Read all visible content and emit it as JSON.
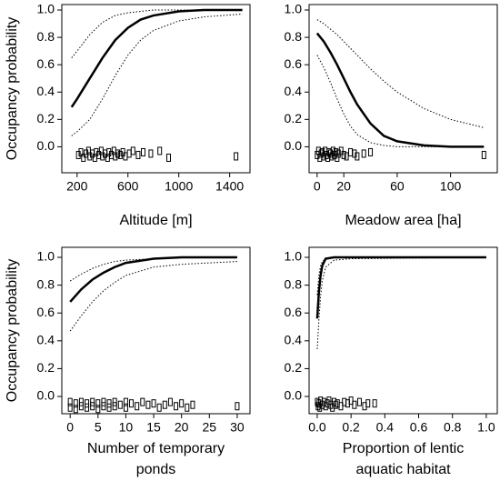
{
  "chart_data": [
    {
      "type": "line",
      "ylabel": "Occupancy probability",
      "xlabel": [
        "Altitude [m]"
      ],
      "xlim": [
        80,
        1560
      ],
      "xticks": [
        200,
        600,
        1000,
        1400
      ],
      "ylim": [
        -0.19,
        1.04
      ],
      "yticks": [
        {
          "value": 0,
          "label": "0.0"
        },
        0.2,
        0.4,
        0.6,
        0.8,
        {
          "value": 1,
          "label": "1.0"
        }
      ],
      "x": [
        157,
        200,
        300,
        400,
        500,
        600,
        700,
        800,
        1000,
        1200,
        1500
      ],
      "series": [
        {
          "color": "#000000",
          "style": "solid",
          "values": [
            0.29,
            0.35,
            0.5,
            0.65,
            0.78,
            0.87,
            0.93,
            0.96,
            0.99,
            1.0,
            1.0
          ]
        },
        {
          "color": "#000000",
          "style": "dotted",
          "values": [
            0.65,
            0.7,
            0.82,
            0.91,
            0.96,
            0.98,
            0.99,
            1.0,
            1.0,
            1.0,
            1.0
          ]
        },
        {
          "color": "#000000",
          "style": "dotted",
          "values": [
            0.08,
            0.11,
            0.2,
            0.35,
            0.52,
            0.67,
            0.78,
            0.85,
            0.92,
            0.95,
            0.97
          ]
        }
      ],
      "points": {
        "x": [
          210,
          230,
          250,
          270,
          290,
          300,
          320,
          340,
          350,
          370,
          390,
          400,
          420,
          440,
          450,
          470,
          490,
          500,
          520,
          540,
          560,
          580,
          610,
          640,
          680,
          720,
          780,
          850,
          920,
          1450
        ],
        "y": [
          -0.06,
          -0.04,
          -0.08,
          -0.05,
          -0.03,
          -0.07,
          -0.05,
          -0.08,
          -0.04,
          -0.06,
          -0.03,
          -0.07,
          -0.05,
          -0.08,
          -0.04,
          -0.06,
          -0.03,
          -0.07,
          -0.05,
          -0.06,
          -0.04,
          -0.07,
          -0.05,
          -0.03,
          -0.06,
          -0.04,
          -0.05,
          -0.03,
          -0.08,
          -0.07
        ]
      }
    },
    {
      "type": "line",
      "xlabel": [
        "Meadow area [ha]"
      ],
      "xlim": [
        -6,
        135
      ],
      "xticks": [
        0,
        20,
        60,
        100
      ],
      "ylim": [
        -0.19,
        1.04
      ],
      "yticks": [
        {
          "value": 0,
          "label": "0.0"
        },
        0.2,
        0.4,
        0.6,
        0.8,
        {
          "value": 1,
          "label": "1.0"
        }
      ],
      "x": [
        0,
        5,
        10,
        15,
        20,
        25,
        30,
        40,
        50,
        60,
        80,
        100,
        125
      ],
      "series": [
        {
          "color": "#000000",
          "style": "solid",
          "values": [
            0.83,
            0.77,
            0.69,
            0.6,
            0.5,
            0.4,
            0.31,
            0.17,
            0.08,
            0.04,
            0.01,
            0.0,
            0.0
          ]
        },
        {
          "color": "#000000",
          "style": "dotted",
          "values": [
            0.93,
            0.9,
            0.86,
            0.82,
            0.77,
            0.72,
            0.67,
            0.57,
            0.48,
            0.4,
            0.28,
            0.2,
            0.14
          ]
        },
        {
          "color": "#000000",
          "style": "dotted",
          "values": [
            0.67,
            0.58,
            0.47,
            0.35,
            0.24,
            0.15,
            0.09,
            0.03,
            0.01,
            0.0,
            0.0,
            0.0,
            0.0
          ]
        }
      ],
      "points": {
        "x": [
          0,
          1,
          2,
          3,
          4,
          5,
          6,
          7,
          8,
          9,
          10,
          11,
          12,
          13,
          14,
          15,
          16,
          18,
          20,
          22,
          25,
          28,
          30,
          35,
          40,
          125
        ],
        "y": [
          -0.06,
          -0.03,
          -0.08,
          -0.05,
          -0.04,
          -0.07,
          -0.03,
          -0.06,
          -0.08,
          -0.04,
          -0.05,
          -0.07,
          -0.03,
          -0.06,
          -0.04,
          -0.08,
          -0.05,
          -0.03,
          -0.06,
          -0.07,
          -0.04,
          -0.05,
          -0.07,
          -0.05,
          -0.04,
          -0.06
        ]
      }
    },
    {
      "type": "line",
      "ylabel": "Occupancy probability",
      "xlabel": [
        "Number of temporary",
        "ponds"
      ],
      "xlim": [
        -1.5,
        32.3
      ],
      "xticks": [
        0,
        5,
        10,
        15,
        20,
        25,
        30
      ],
      "ylim": [
        -0.124,
        1.072
      ],
      "yticks": [
        {
          "value": 0,
          "label": "0.0"
        },
        0.2,
        0.4,
        0.6,
        0.8,
        {
          "value": 1,
          "label": "1.0"
        }
      ],
      "x": [
        0,
        2,
        4,
        6,
        8,
        10,
        15,
        20,
        30
      ],
      "series": [
        {
          "color": "#000000",
          "style": "solid",
          "values": [
            0.68,
            0.77,
            0.84,
            0.89,
            0.93,
            0.96,
            0.99,
            1.0,
            1.0
          ]
        },
        {
          "color": "#000000",
          "style": "dotted",
          "values": [
            0.83,
            0.88,
            0.92,
            0.95,
            0.97,
            0.98,
            0.99,
            1.0,
            1.0
          ]
        },
        {
          "color": "#000000",
          "style": "dotted",
          "values": [
            0.47,
            0.58,
            0.68,
            0.76,
            0.82,
            0.87,
            0.93,
            0.95,
            0.97
          ]
        }
      ],
      "points": {
        "x": [
          0,
          0,
          1,
          1,
          2,
          2,
          3,
          3,
          4,
          4,
          5,
          5,
          6,
          6,
          7,
          7,
          8,
          8,
          9,
          10,
          10,
          11,
          12,
          13,
          14,
          15,
          16,
          17,
          18,
          19,
          20,
          21,
          22,
          30
        ],
        "y": [
          -0.04,
          -0.08,
          -0.05,
          -0.09,
          -0.04,
          -0.07,
          -0.05,
          -0.08,
          -0.04,
          -0.07,
          -0.05,
          -0.09,
          -0.04,
          -0.07,
          -0.05,
          -0.08,
          -0.04,
          -0.07,
          -0.06,
          -0.04,
          -0.08,
          -0.05,
          -0.07,
          -0.04,
          -0.06,
          -0.05,
          -0.08,
          -0.06,
          -0.04,
          -0.07,
          -0.05,
          -0.08,
          -0.06,
          -0.07
        ]
      }
    },
    {
      "type": "line",
      "xlabel": [
        "Proportion of lentic",
        "aquatic habitat"
      ],
      "xlim": [
        -0.048,
        1.065
      ],
      "xticks": [
        {
          "value": 0,
          "label": "0.0"
        },
        0.2,
        0.4,
        0.6,
        0.8,
        {
          "value": 1,
          "label": "1.0"
        }
      ],
      "ylim": [
        -0.124,
        1.072
      ],
      "yticks": [
        {
          "value": 0,
          "label": "0.0"
        },
        0.2,
        0.4,
        0.6,
        0.8,
        {
          "value": 1,
          "label": "1.0"
        }
      ],
      "x": [
        0,
        0.01,
        0.02,
        0.03,
        0.05,
        0.1,
        0.2,
        1.0
      ],
      "series": [
        {
          "color": "#000000",
          "style": "solid",
          "values": [
            0.56,
            0.75,
            0.87,
            0.94,
            0.99,
            1.0,
            1.0,
            1.0
          ]
        },
        {
          "color": "#000000",
          "style": "dotted",
          "values": [
            0.73,
            0.87,
            0.94,
            0.97,
            0.99,
            1.0,
            1.0,
            1.0
          ]
        },
        {
          "color": "#000000",
          "style": "dotted",
          "values": [
            0.34,
            0.55,
            0.72,
            0.83,
            0.93,
            0.98,
            0.99,
            1.0
          ]
        }
      ],
      "points": {
        "x": [
          0,
          0.005,
          0.01,
          0.015,
          0.02,
          0.03,
          0.04,
          0.05,
          0.06,
          0.07,
          0.08,
          0.09,
          0.1,
          0.11,
          0.12,
          0.14,
          0.16,
          0.18,
          0.2,
          0.22,
          0.25,
          0.28,
          0.3,
          0.34
        ],
        "y": [
          -0.04,
          -0.07,
          -0.05,
          -0.08,
          -0.03,
          -0.06,
          -0.04,
          -0.07,
          -0.05,
          -0.03,
          -0.06,
          -0.08,
          -0.04,
          -0.06,
          -0.05,
          -0.07,
          -0.04,
          -0.05,
          -0.03,
          -0.06,
          -0.04,
          -0.07,
          -0.05,
          -0.05
        ]
      }
    }
  ]
}
